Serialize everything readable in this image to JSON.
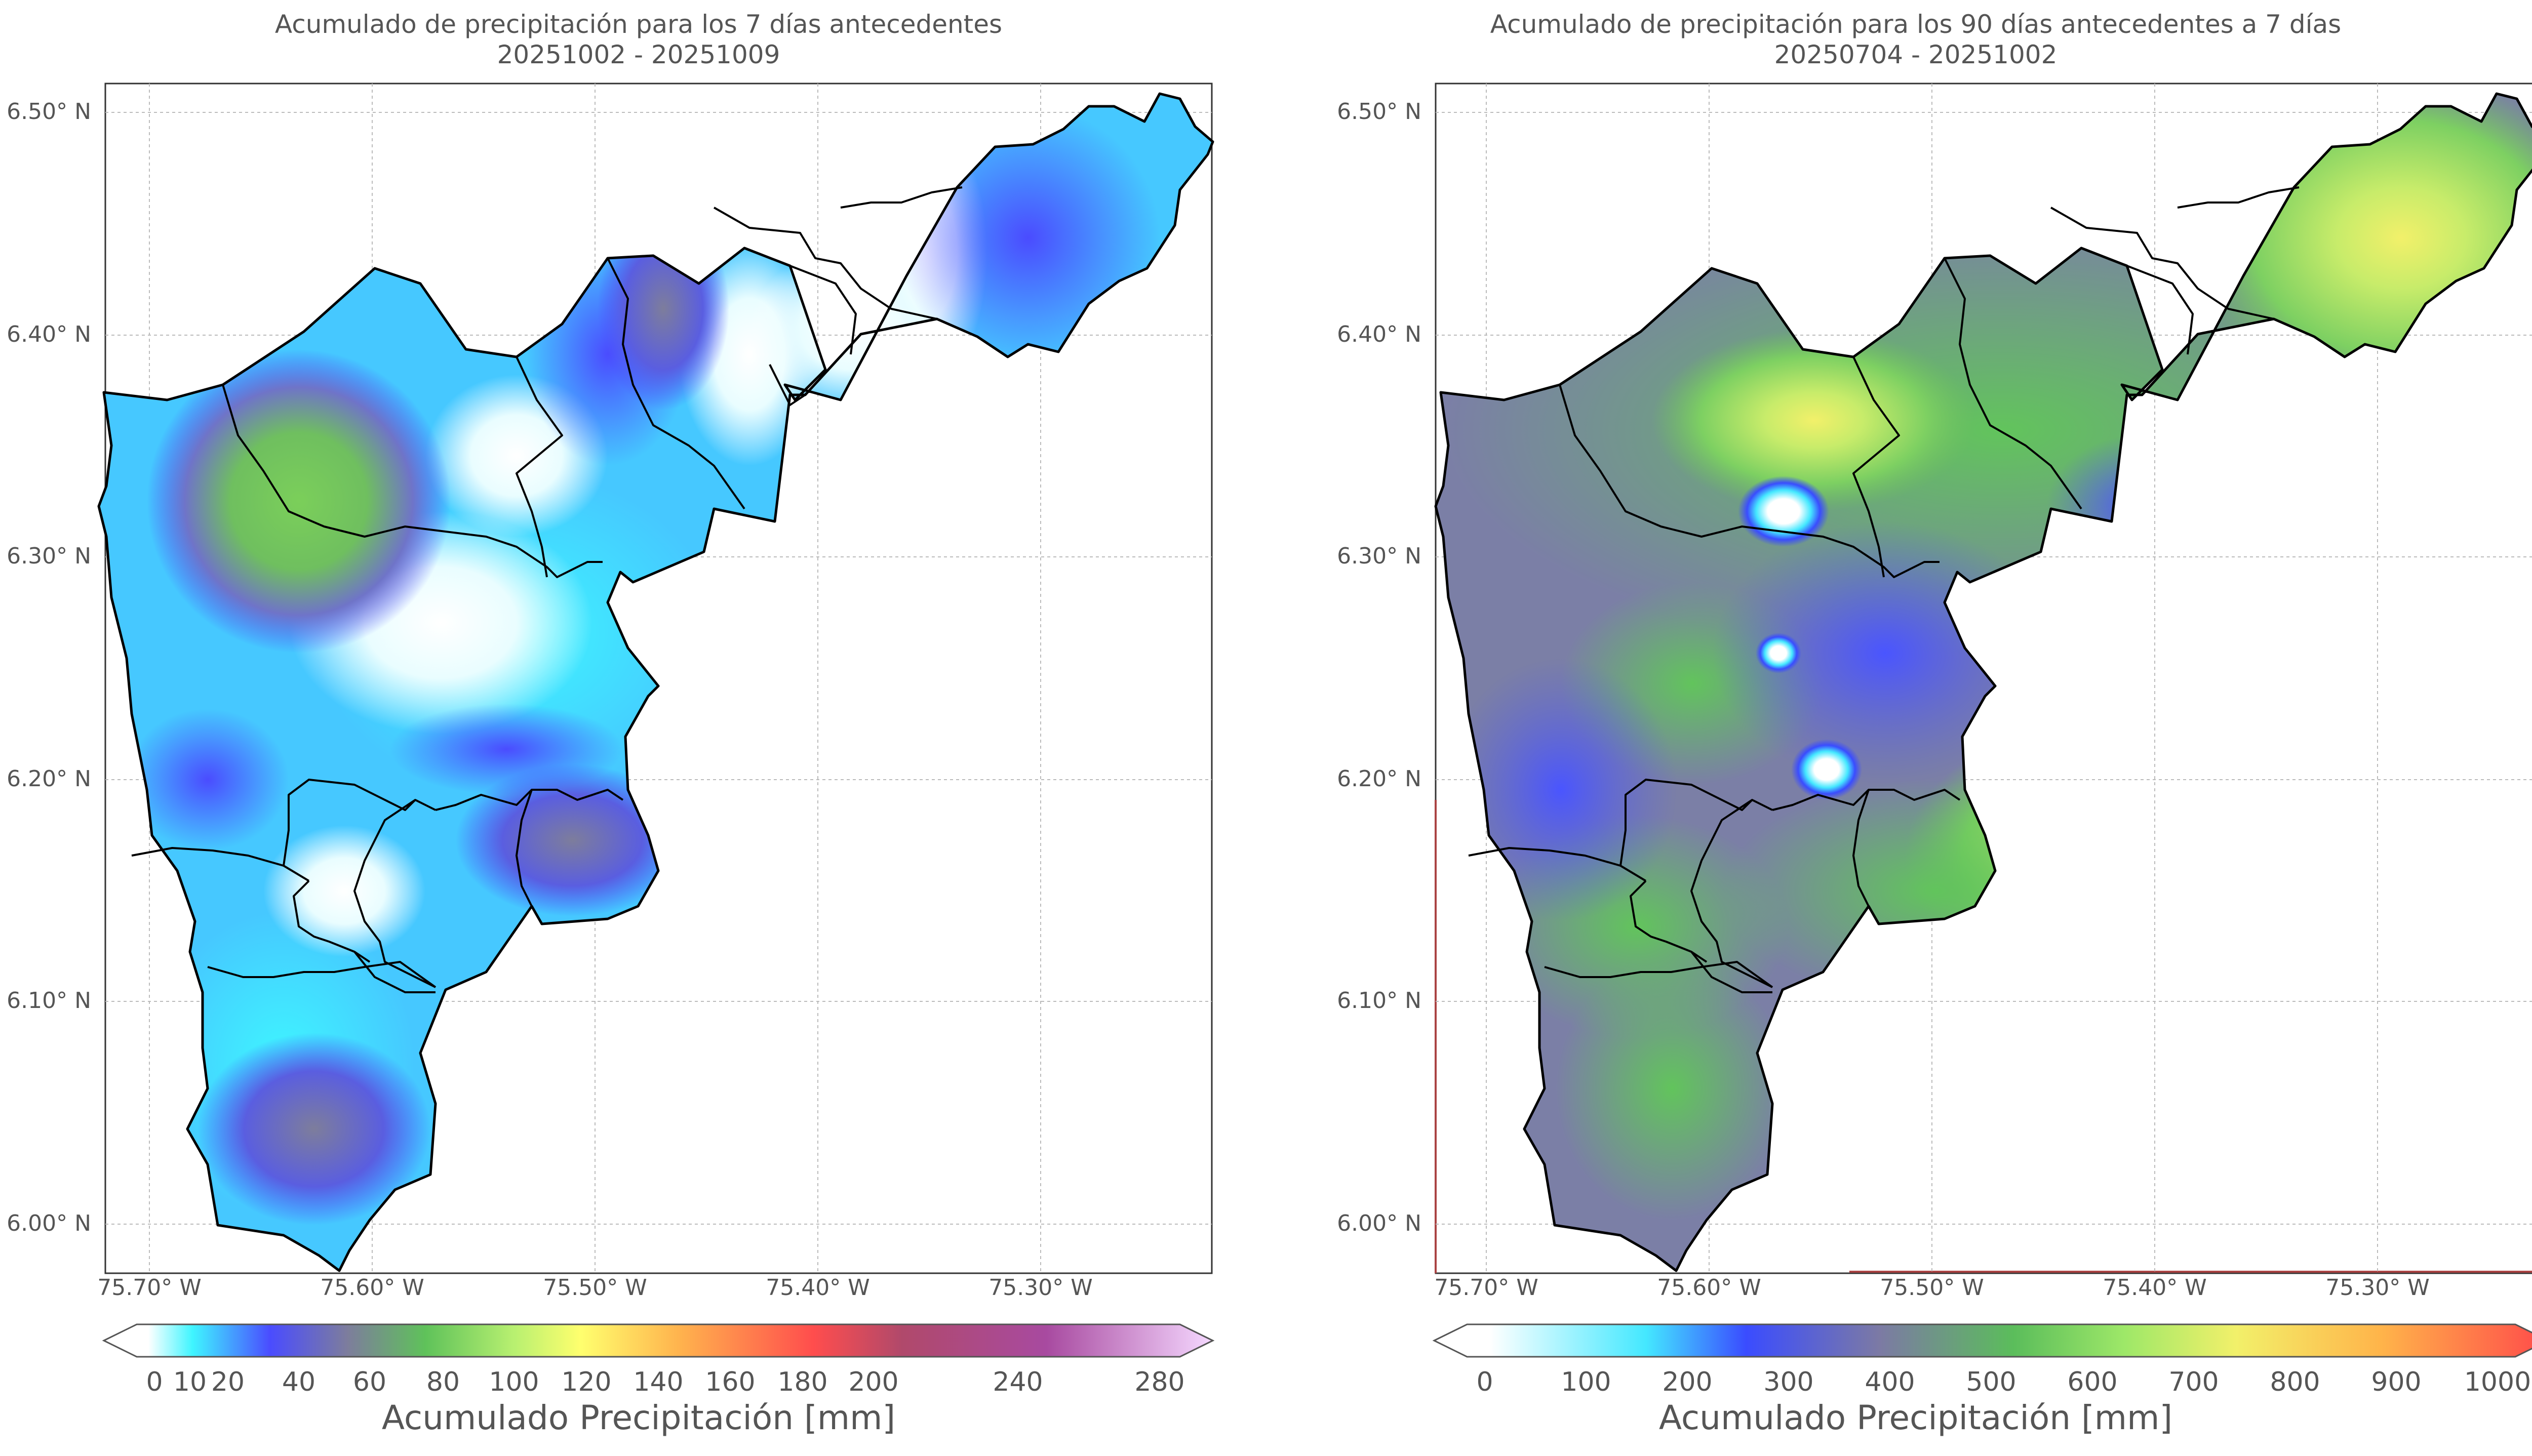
{
  "left_panel": {
    "title_line1": "Acumulado de precipitación para los 7 días antecedentes",
    "title_line2": "20251002 - 20251009",
    "y_ticks": [
      "6.50° N",
      "6.40° N",
      "6.30° N",
      "6.20° N",
      "6.10° N",
      "6.00° N"
    ],
    "x_ticks": [
      "75.70° W",
      "75.60° W",
      "75.50° W",
      "75.40° W",
      "75.30° W"
    ],
    "colorbar_ticks": [
      "0",
      "10",
      "20",
      "40",
      "60",
      "80",
      "100",
      "120",
      "140",
      "160",
      "180",
      "200",
      "240",
      "280"
    ],
    "colorbar_label": "Acumulado Precipitación [mm]",
    "colorbar_colors": [
      "#ffffff",
      "#3ff5ff",
      "#4a4cff",
      "#7d7d9c",
      "#5fc25a",
      "#b8f070",
      "#ffff6e",
      "#ffb24d",
      "#ff4d4d",
      "#b0496b",
      "#a84aa0",
      "#f5d8ff"
    ]
  },
  "right_panel": {
    "title_line1": "Acumulado de precipitación para los 90 días antecedentes a 7 días",
    "title_line2": "20250704 - 20251002",
    "y_ticks": [
      "6.50° N",
      "6.40° N",
      "6.30° N",
      "6.20° N",
      "6.10° N",
      "6.00° N"
    ],
    "x_ticks": [
      "75.70° W",
      "75.60° W",
      "75.50° W",
      "75.40° W",
      "75.30° W"
    ],
    "colorbar_ticks": [
      "0",
      "100",
      "200",
      "300",
      "400",
      "500",
      "600",
      "700",
      "800",
      "900",
      "1000"
    ],
    "colorbar_label": "Acumulado Precipitación [mm]",
    "colorbar_colors": [
      "#ffffff",
      "#44e8ff",
      "#3a4cff",
      "#7c7aa4",
      "#5bbd5b",
      "#9ee868",
      "#f2f06a",
      "#ffb44a",
      "#ff4a4a"
    ]
  }
}
